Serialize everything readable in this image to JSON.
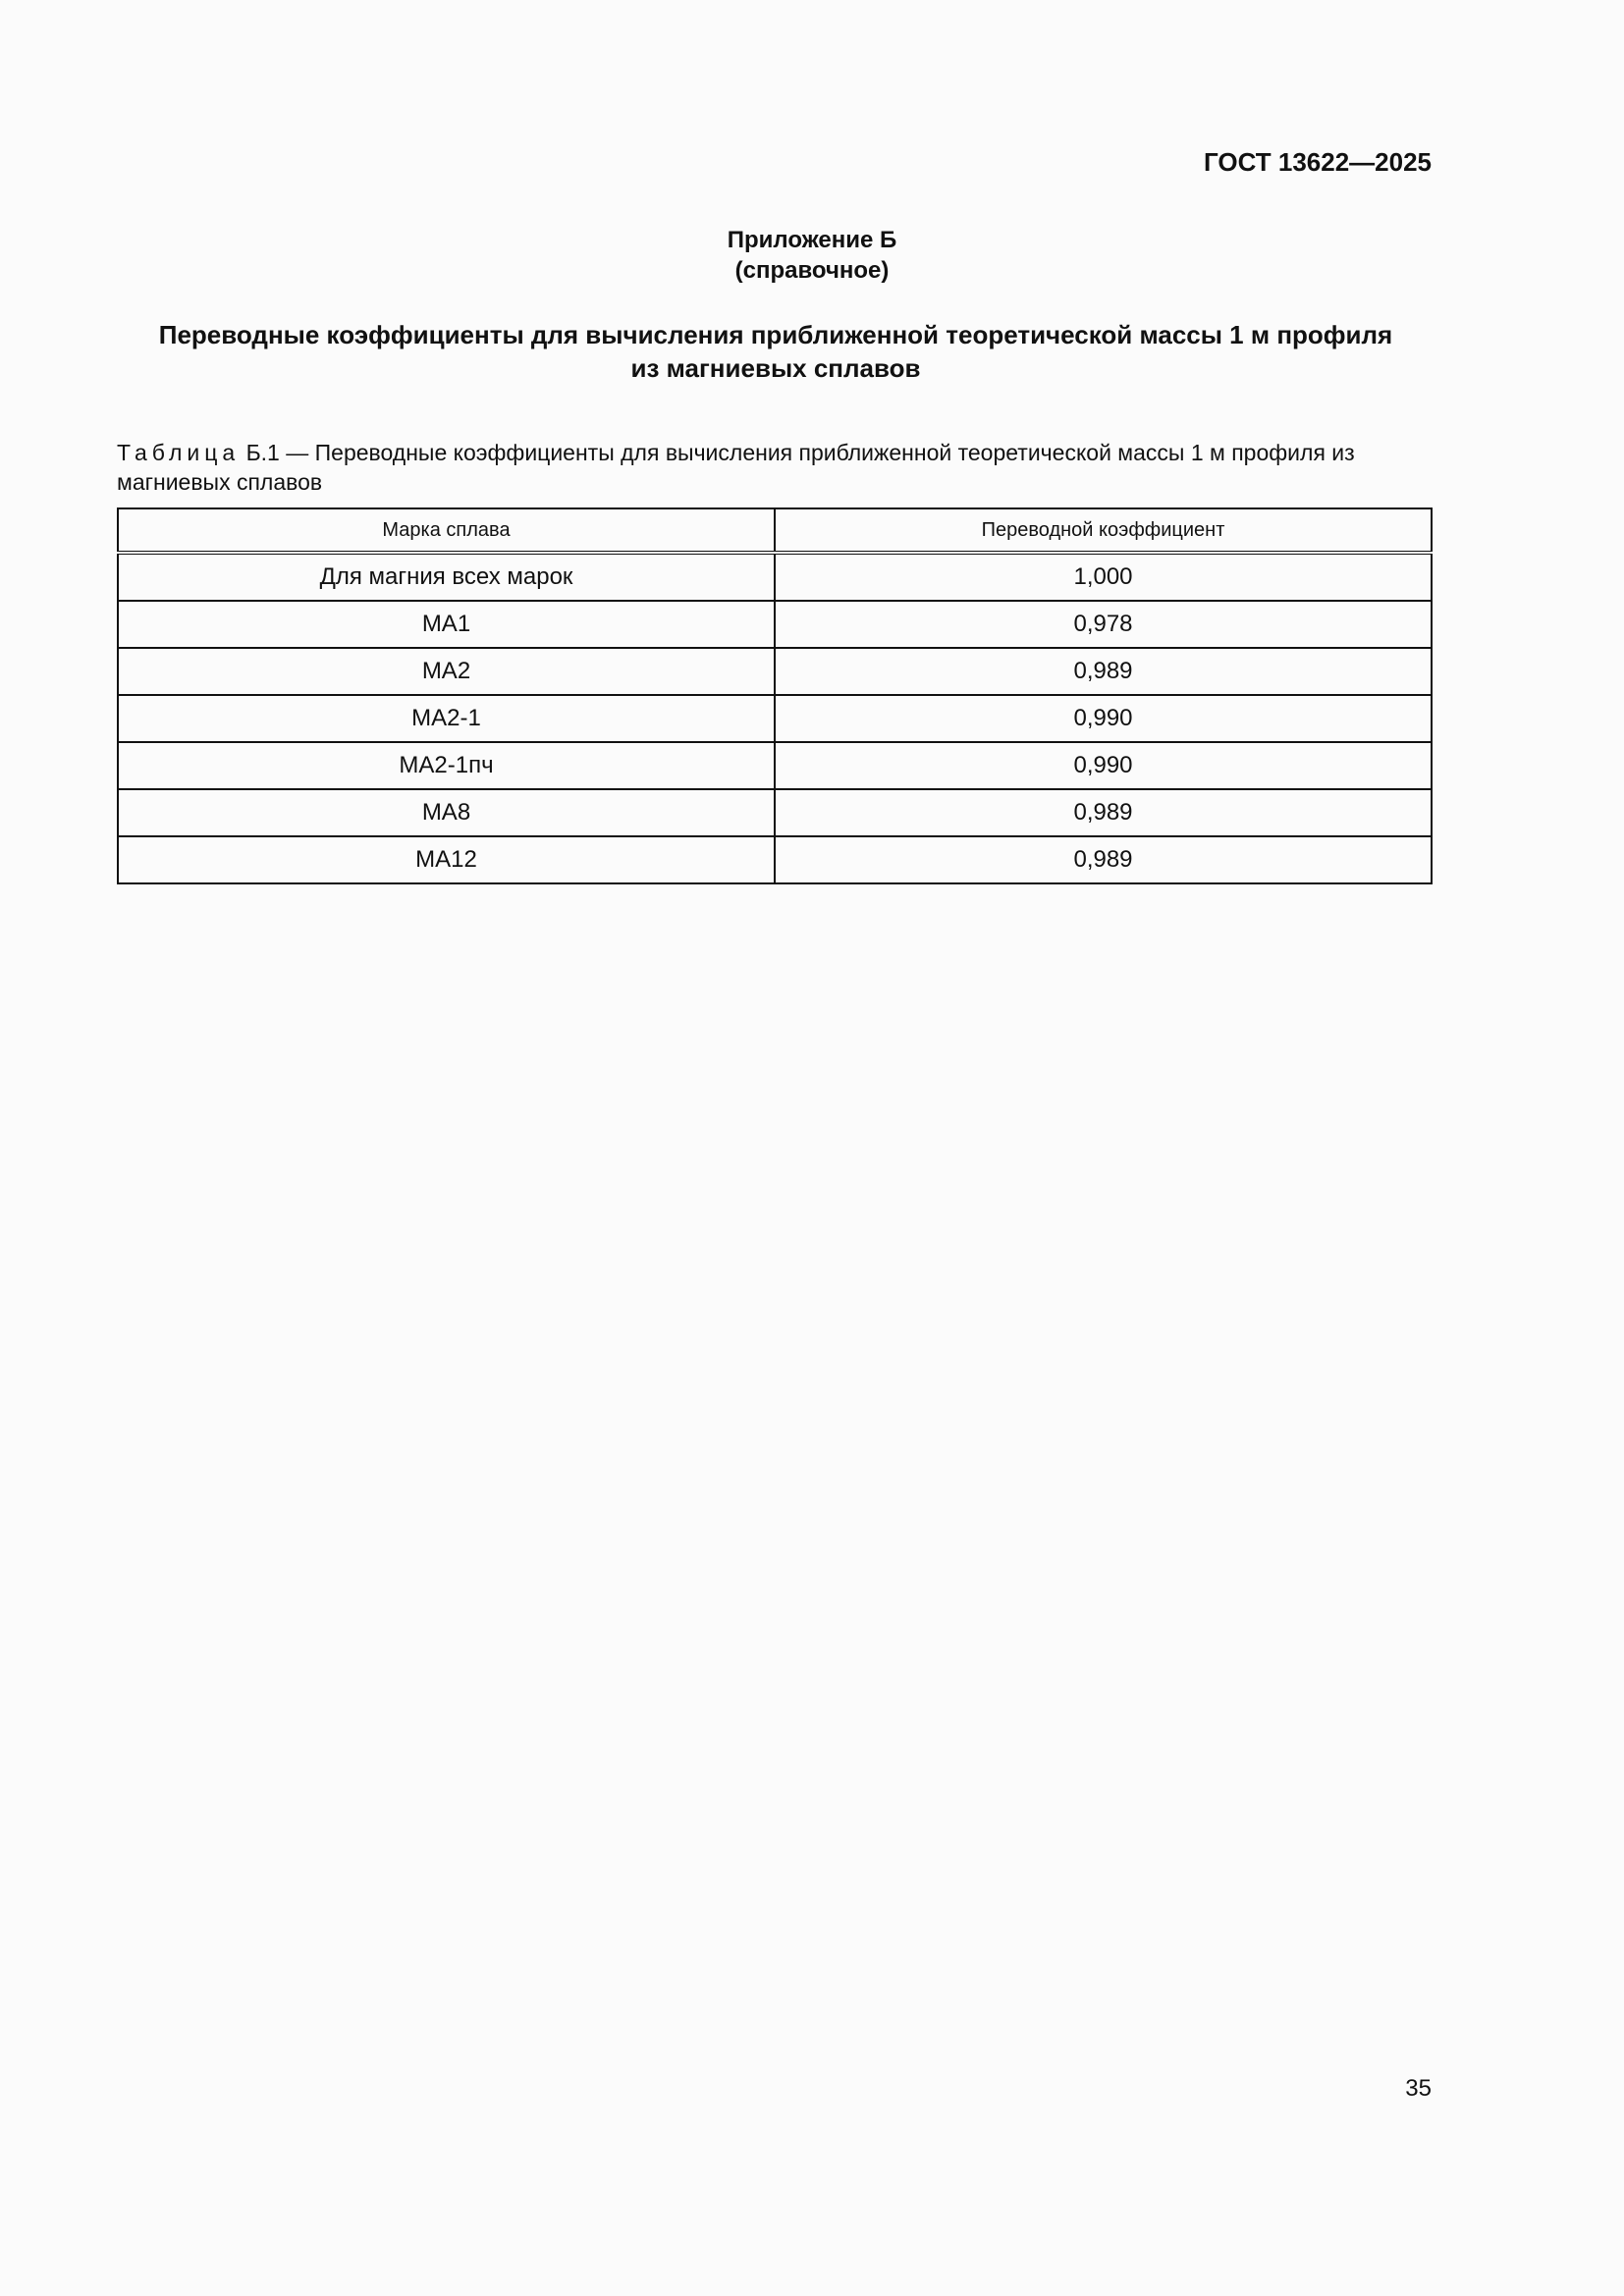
{
  "header": {
    "doc_code": "ГОСТ 13622—2025"
  },
  "annex": {
    "title": "Приложение Б",
    "type": "(справочное)"
  },
  "section_title": "Переводные коэффициенты для вычисления приближенной теоретической массы 1 м профиля из магниевых сплавов",
  "table": {
    "caption_label": "Таблица",
    "caption_text": "Б.1 — Переводные коэффициенты для вычисления приближенной теоретической массы 1 м профиля из магниевых сплавов",
    "columns": [
      "Марка сплава",
      "Переводной коэффициент"
    ],
    "rows": [
      [
        "Для магния всех марок",
        "1,000"
      ],
      [
        "МА1",
        "0,978"
      ],
      [
        "МА2",
        "0,989"
      ],
      [
        "МА2-1",
        "0,990"
      ],
      [
        "МА2-1пч",
        "0,990"
      ],
      [
        "МА8",
        "0,989"
      ],
      [
        "МА12",
        "0,989"
      ]
    ]
  },
  "footer": {
    "page_number": "35"
  }
}
